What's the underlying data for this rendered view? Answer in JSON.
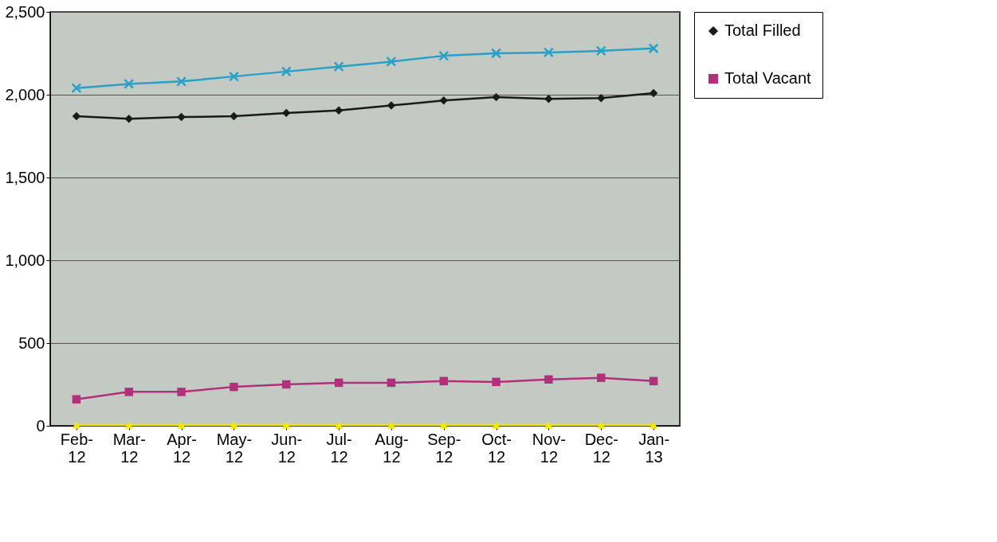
{
  "chart_data": {
    "type": "line",
    "categories": [
      "Feb-12",
      "Mar-12",
      "Apr-12",
      "May-12",
      "Jun-12",
      "Jul-12",
      "Aug-12",
      "Sep-12",
      "Oct-12",
      "Nov-12",
      "Dec-12",
      "Jan-13"
    ],
    "series": [
      {
        "name": "Total Filled",
        "color": "#1a1a1a",
        "marker": "diamond",
        "values": [
          1870,
          1855,
          1865,
          1870,
          1890,
          1905,
          1935,
          1965,
          1985,
          1975,
          1980,
          2010
        ]
      },
      {
        "name": "Total Vacant",
        "color": "#b0307a",
        "marker": "square",
        "values": [
          160,
          205,
          205,
          235,
          250,
          260,
          260,
          270,
          265,
          280,
          290,
          270
        ]
      },
      {
        "color": "#2a9fc8",
        "marker": "cross",
        "values": [
          2040,
          2065,
          2080,
          2110,
          2140,
          2170,
          2200,
          2235,
          2250,
          2255,
          2265,
          2280
        ]
      },
      {
        "color": "#f0e800",
        "marker": "triangle",
        "values": [
          5,
          5,
          5,
          5,
          5,
          5,
          5,
          5,
          5,
          5,
          5,
          5
        ]
      }
    ],
    "ylim": [
      0,
      2500
    ],
    "yticks": [
      {
        "value": 0,
        "label": "0"
      },
      {
        "value": 500,
        "label": "500"
      },
      {
        "value": 1000,
        "label": "1,000"
      },
      {
        "value": 1500,
        "label": "1,500"
      },
      {
        "value": 2000,
        "label": "2,000"
      },
      {
        "value": 2500,
        "label": "2,500"
      }
    ],
    "grid": "y",
    "legend": "right",
    "line_style": "solid"
  }
}
